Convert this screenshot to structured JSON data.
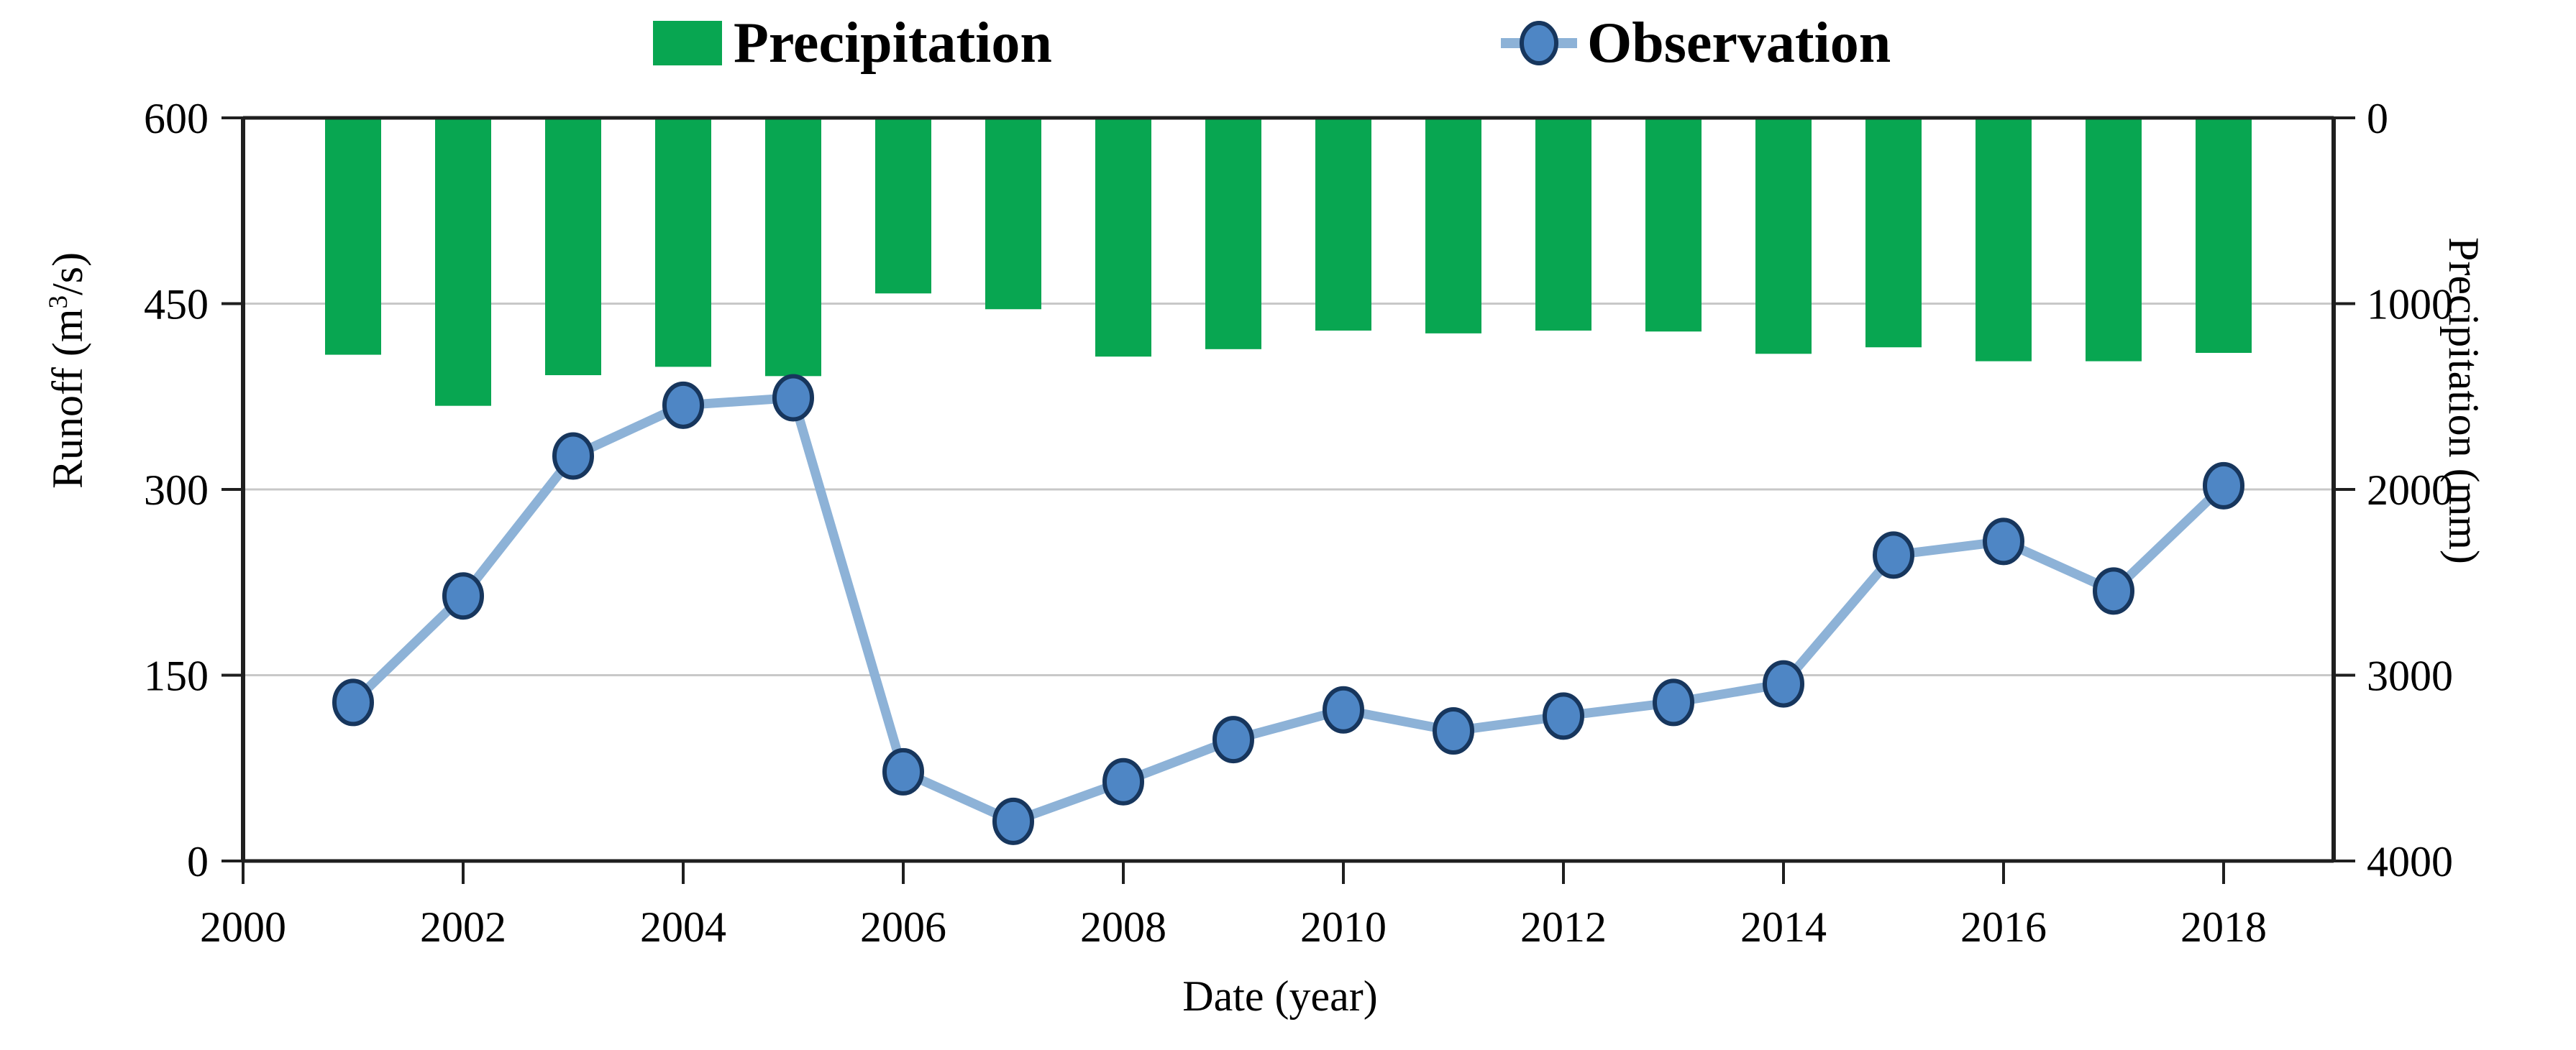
{
  "legend": {
    "precipitation_label": "Precipitation",
    "observation_label": "Observation"
  },
  "axes": {
    "left": {
      "title_prefix": "Runoff (m",
      "title_sup": "3",
      "title_suffix": "/s)",
      "tick_labels": [
        "600",
        "450",
        "300",
        "150",
        "0"
      ]
    },
    "right": {
      "title": "Precipitation (mm)",
      "tick_labels": [
        "0",
        "1000",
        "2000",
        "3000",
        "4000"
      ]
    },
    "x": {
      "title": "Date (year)",
      "tick_labels": [
        "2000",
        "2002",
        "2004",
        "2006",
        "2008",
        "2010",
        "2012",
        "2014",
        "2016",
        "2018"
      ]
    }
  },
  "chart_data": {
    "type": "bar+line",
    "title": "",
    "x": [
      2001,
      2002,
      2003,
      2004,
      2005,
      2006,
      2007,
      2008,
      2009,
      2010,
      2011,
      2012,
      2013,
      2014,
      2015,
      2016,
      2017,
      2018
    ],
    "series": [
      {
        "name": "Precipitation",
        "type": "bar",
        "axis": "right",
        "unit": "mm",
        "values": [
          1275,
          1550,
          1385,
          1340,
          1390,
          945,
          1030,
          1285,
          1245,
          1145,
          1160,
          1145,
          1150,
          1270,
          1235,
          1310,
          1310,
          1265
        ]
      },
      {
        "name": "Observation",
        "type": "line",
        "axis": "left",
        "unit": "m3/s",
        "values": [
          128,
          214,
          327,
          368,
          374,
          72,
          32,
          64,
          98,
          122,
          105,
          117,
          128,
          143,
          247,
          258,
          218,
          303
        ]
      }
    ],
    "x_axis": {
      "label": "Date (year)",
      "range": [
        2000,
        2019
      ],
      "ticks": [
        2000,
        2002,
        2004,
        2006,
        2008,
        2010,
        2012,
        2014,
        2016,
        2018
      ]
    },
    "left_axis": {
      "label": "Runoff (m3/s)",
      "range": [
        0,
        600
      ],
      "ticks": [
        0,
        150,
        300,
        450,
        600
      ],
      "inverted": false
    },
    "right_axis": {
      "label": "Precipitation (mm)",
      "range": [
        0,
        4000
      ],
      "ticks": [
        0,
        1000,
        2000,
        3000,
        4000
      ],
      "inverted": true
    },
    "grid": "horizontal",
    "legend_position": "top-center",
    "colors": {
      "bar": "#08a651",
      "line": "#8db2d7",
      "marker_fill": "#4e86c5",
      "marker_stroke": "#17365d",
      "axis": "#1f1f1f",
      "grid": "#c8c8c8",
      "text": "#000000"
    }
  }
}
